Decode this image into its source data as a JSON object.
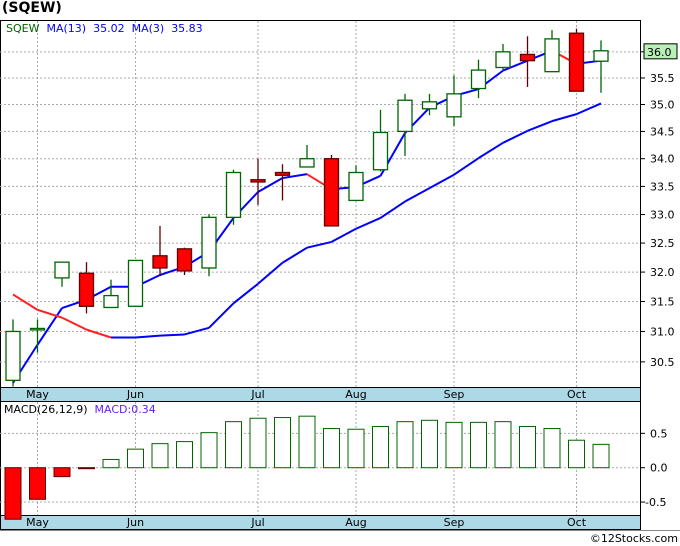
{
  "title": "(SQEW)",
  "legend": {
    "ticker": "SQEW",
    "ma13_label": "MA(13)",
    "ma13_value": "35.02",
    "ma3_label": "MA(3)",
    "ma3_value": "35.83"
  },
  "macd_legend": {
    "label": "MACD(26,12,9)",
    "value": "MACD:0.34"
  },
  "footer": "©12Stocks.com",
  "last_price_label": "36.0",
  "colors": {
    "up": "#006400",
    "down": "#ff0000",
    "ma": "#0000ff",
    "ma_falling": "#ff2020",
    "date_strip": "#add8e6",
    "last_price_bg": "#b8f0b8"
  },
  "chart_data": [
    {
      "type": "candlestick",
      "title": "SQEW",
      "scale": "log",
      "ylim": [
        30.1,
        36.5
      ],
      "yticks": [
        "30.5",
        "31.0",
        "31.5",
        "32.0",
        "32.5",
        "33.0",
        "33.5",
        "34.0",
        "34.5",
        "35.0",
        "35.5",
        "36.0"
      ],
      "month_labels": [
        {
          "label": "May",
          "index": 1
        },
        {
          "label": "Jun",
          "index": 5
        },
        {
          "label": "Jul",
          "index": 10
        },
        {
          "label": "Aug",
          "index": 14
        },
        {
          "label": "Sep",
          "index": 18
        },
        {
          "label": "Oct",
          "index": 23
        }
      ],
      "candles": [
        {
          "o": 30.2,
          "c": 31.0,
          "h": 31.2,
          "l": 30.1
        },
        {
          "o": 31.05,
          "c": 31.05,
          "h": 31.2,
          "l": 30.65
        },
        {
          "o": 31.9,
          "c": 32.17,
          "h": 32.17,
          "l": 31.75
        },
        {
          "o": 31.98,
          "c": 31.42,
          "h": 32.17,
          "l": 31.3
        },
        {
          "o": 31.4,
          "c": 31.6,
          "h": 31.87,
          "l": 31.4
        },
        {
          "o": 31.42,
          "c": 32.2,
          "h": 32.2,
          "l": 31.42
        },
        {
          "o": 32.28,
          "c": 32.07,
          "h": 32.8,
          "l": 31.93
        },
        {
          "o": 32.4,
          "c": 32.02,
          "h": 32.42,
          "l": 31.95
        },
        {
          "o": 32.07,
          "c": 32.95,
          "h": 33.0,
          "l": 31.93
        },
        {
          "o": 32.95,
          "c": 33.75,
          "h": 33.8,
          "l": 32.82
        },
        {
          "o": 33.62,
          "c": 33.58,
          "h": 34.0,
          "l": 33.17
        },
        {
          "o": 33.75,
          "c": 33.7,
          "h": 33.9,
          "l": 33.25
        },
        {
          "o": 33.85,
          "c": 34.0,
          "h": 34.25,
          "l": 33.85
        },
        {
          "o": 34.0,
          "c": 32.8,
          "h": 34.07,
          "l": 32.8
        },
        {
          "o": 33.25,
          "c": 33.75,
          "h": 33.88,
          "l": 33.25
        },
        {
          "o": 33.8,
          "c": 34.48,
          "h": 34.9,
          "l": 33.77
        },
        {
          "o": 34.5,
          "c": 35.08,
          "h": 35.2,
          "l": 34.05
        },
        {
          "o": 34.92,
          "c": 35.05,
          "h": 35.2,
          "l": 34.8
        },
        {
          "o": 34.77,
          "c": 35.2,
          "h": 35.55,
          "l": 34.6
        },
        {
          "o": 35.3,
          "c": 35.65,
          "h": 35.85,
          "l": 35.12
        },
        {
          "o": 35.7,
          "c": 36.0,
          "h": 36.15,
          "l": 35.65
        },
        {
          "o": 35.95,
          "c": 35.83,
          "h": 36.3,
          "l": 35.33
        },
        {
          "o": 35.62,
          "c": 36.25,
          "h": 36.42,
          "l": 35.62
        },
        {
          "o": 36.36,
          "c": 35.25,
          "h": 36.45,
          "l": 35.25
        },
        {
          "o": 35.82,
          "c": 36.02,
          "h": 36.22,
          "l": 35.22
        }
      ],
      "series": [
        {
          "name": "MA(3)",
          "values": [
            30.16,
            30.78,
            31.39,
            31.53,
            31.75,
            31.75,
            31.95,
            32.09,
            32.35,
            32.94,
            33.4,
            33.65,
            33.72,
            33.45,
            33.49,
            33.69,
            34.47,
            34.94,
            35.16,
            35.29,
            35.64,
            35.83,
            36.02,
            35.77,
            35.83
          ]
        },
        {
          "name": "MA(13)",
          "values": [
            31.62,
            31.36,
            31.23,
            31.03,
            30.9,
            30.9,
            30.93,
            30.95,
            31.06,
            31.47,
            31.8,
            32.16,
            32.42,
            32.52,
            32.75,
            32.94,
            33.23,
            33.47,
            33.71,
            34.01,
            34.29,
            34.51,
            34.69,
            34.82,
            35.02
          ]
        }
      ]
    },
    {
      "type": "bar",
      "title": "MACD(26,12,9)",
      "ylim": [
        -0.75,
        0.95
      ],
      "yticks": [
        "0.5",
        "0.0",
        "-0.5"
      ],
      "values": [
        -0.75,
        -0.46,
        -0.13,
        -0.01,
        0.12,
        0.27,
        0.35,
        0.38,
        0.51,
        0.67,
        0.72,
        0.73,
        0.75,
        0.57,
        0.56,
        0.6,
        0.67,
        0.69,
        0.66,
        0.66,
        0.67,
        0.6,
        0.57,
        0.4,
        0.34
      ]
    }
  ]
}
